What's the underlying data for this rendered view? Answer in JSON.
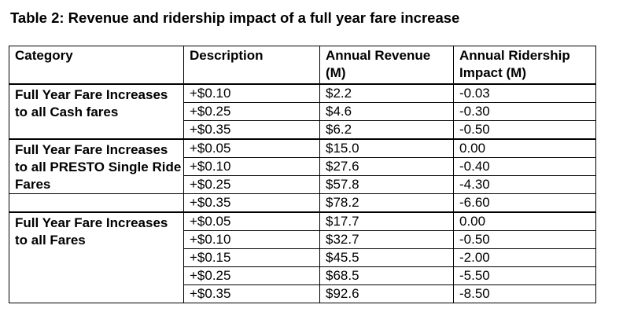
{
  "title": "Table 2: Revenue and ridership impact of a full year fare increase",
  "table": {
    "headers": {
      "category": "Category",
      "description": "Description",
      "revenue": "Annual Revenue (M)",
      "ridership": "Annual Ridership Impact (M)"
    },
    "groups": [
      {
        "category": "Full Year Fare Increases to all Cash fares",
        "rows": [
          {
            "description": "+$0.10",
            "revenue": "$2.2",
            "ridership": "-0.03"
          },
          {
            "description": "+$0.25",
            "revenue": "$4.6",
            "ridership": "-0.30"
          },
          {
            "description": "+$0.35",
            "revenue": "$6.2",
            "ridership": "-0.50"
          }
        ]
      },
      {
        "category": "Full Year Fare Increases to all PRESTO Single Ride Fares",
        "rows": [
          {
            "description": "+$0.05",
            "revenue": "$15.0",
            "ridership": "0.00"
          },
          {
            "description": "+$0.10",
            "revenue": "$27.6",
            "ridership": "-0.40"
          },
          {
            "description": "+$0.25",
            "revenue": "$57.8",
            "ridership": "-4.30"
          },
          {
            "description": "+$0.35",
            "revenue": "$78.2",
            "ridership": "-6.60"
          }
        ]
      },
      {
        "category": "Full Year Fare Increases to all Fares",
        "rows": [
          {
            "description": "+$0.05",
            "revenue": "$17.7",
            "ridership": "0.00"
          },
          {
            "description": "+$0.10",
            "revenue": "$32.7",
            "ridership": "-0.50"
          },
          {
            "description": "+$0.15",
            "revenue": "$45.5",
            "ridership": "-2.00"
          },
          {
            "description": "+$0.25",
            "revenue": "$68.5",
            "ridership": "-5.50"
          },
          {
            "description": "+$0.35",
            "revenue": "$92.6",
            "ridership": "-8.50"
          }
        ]
      }
    ]
  }
}
